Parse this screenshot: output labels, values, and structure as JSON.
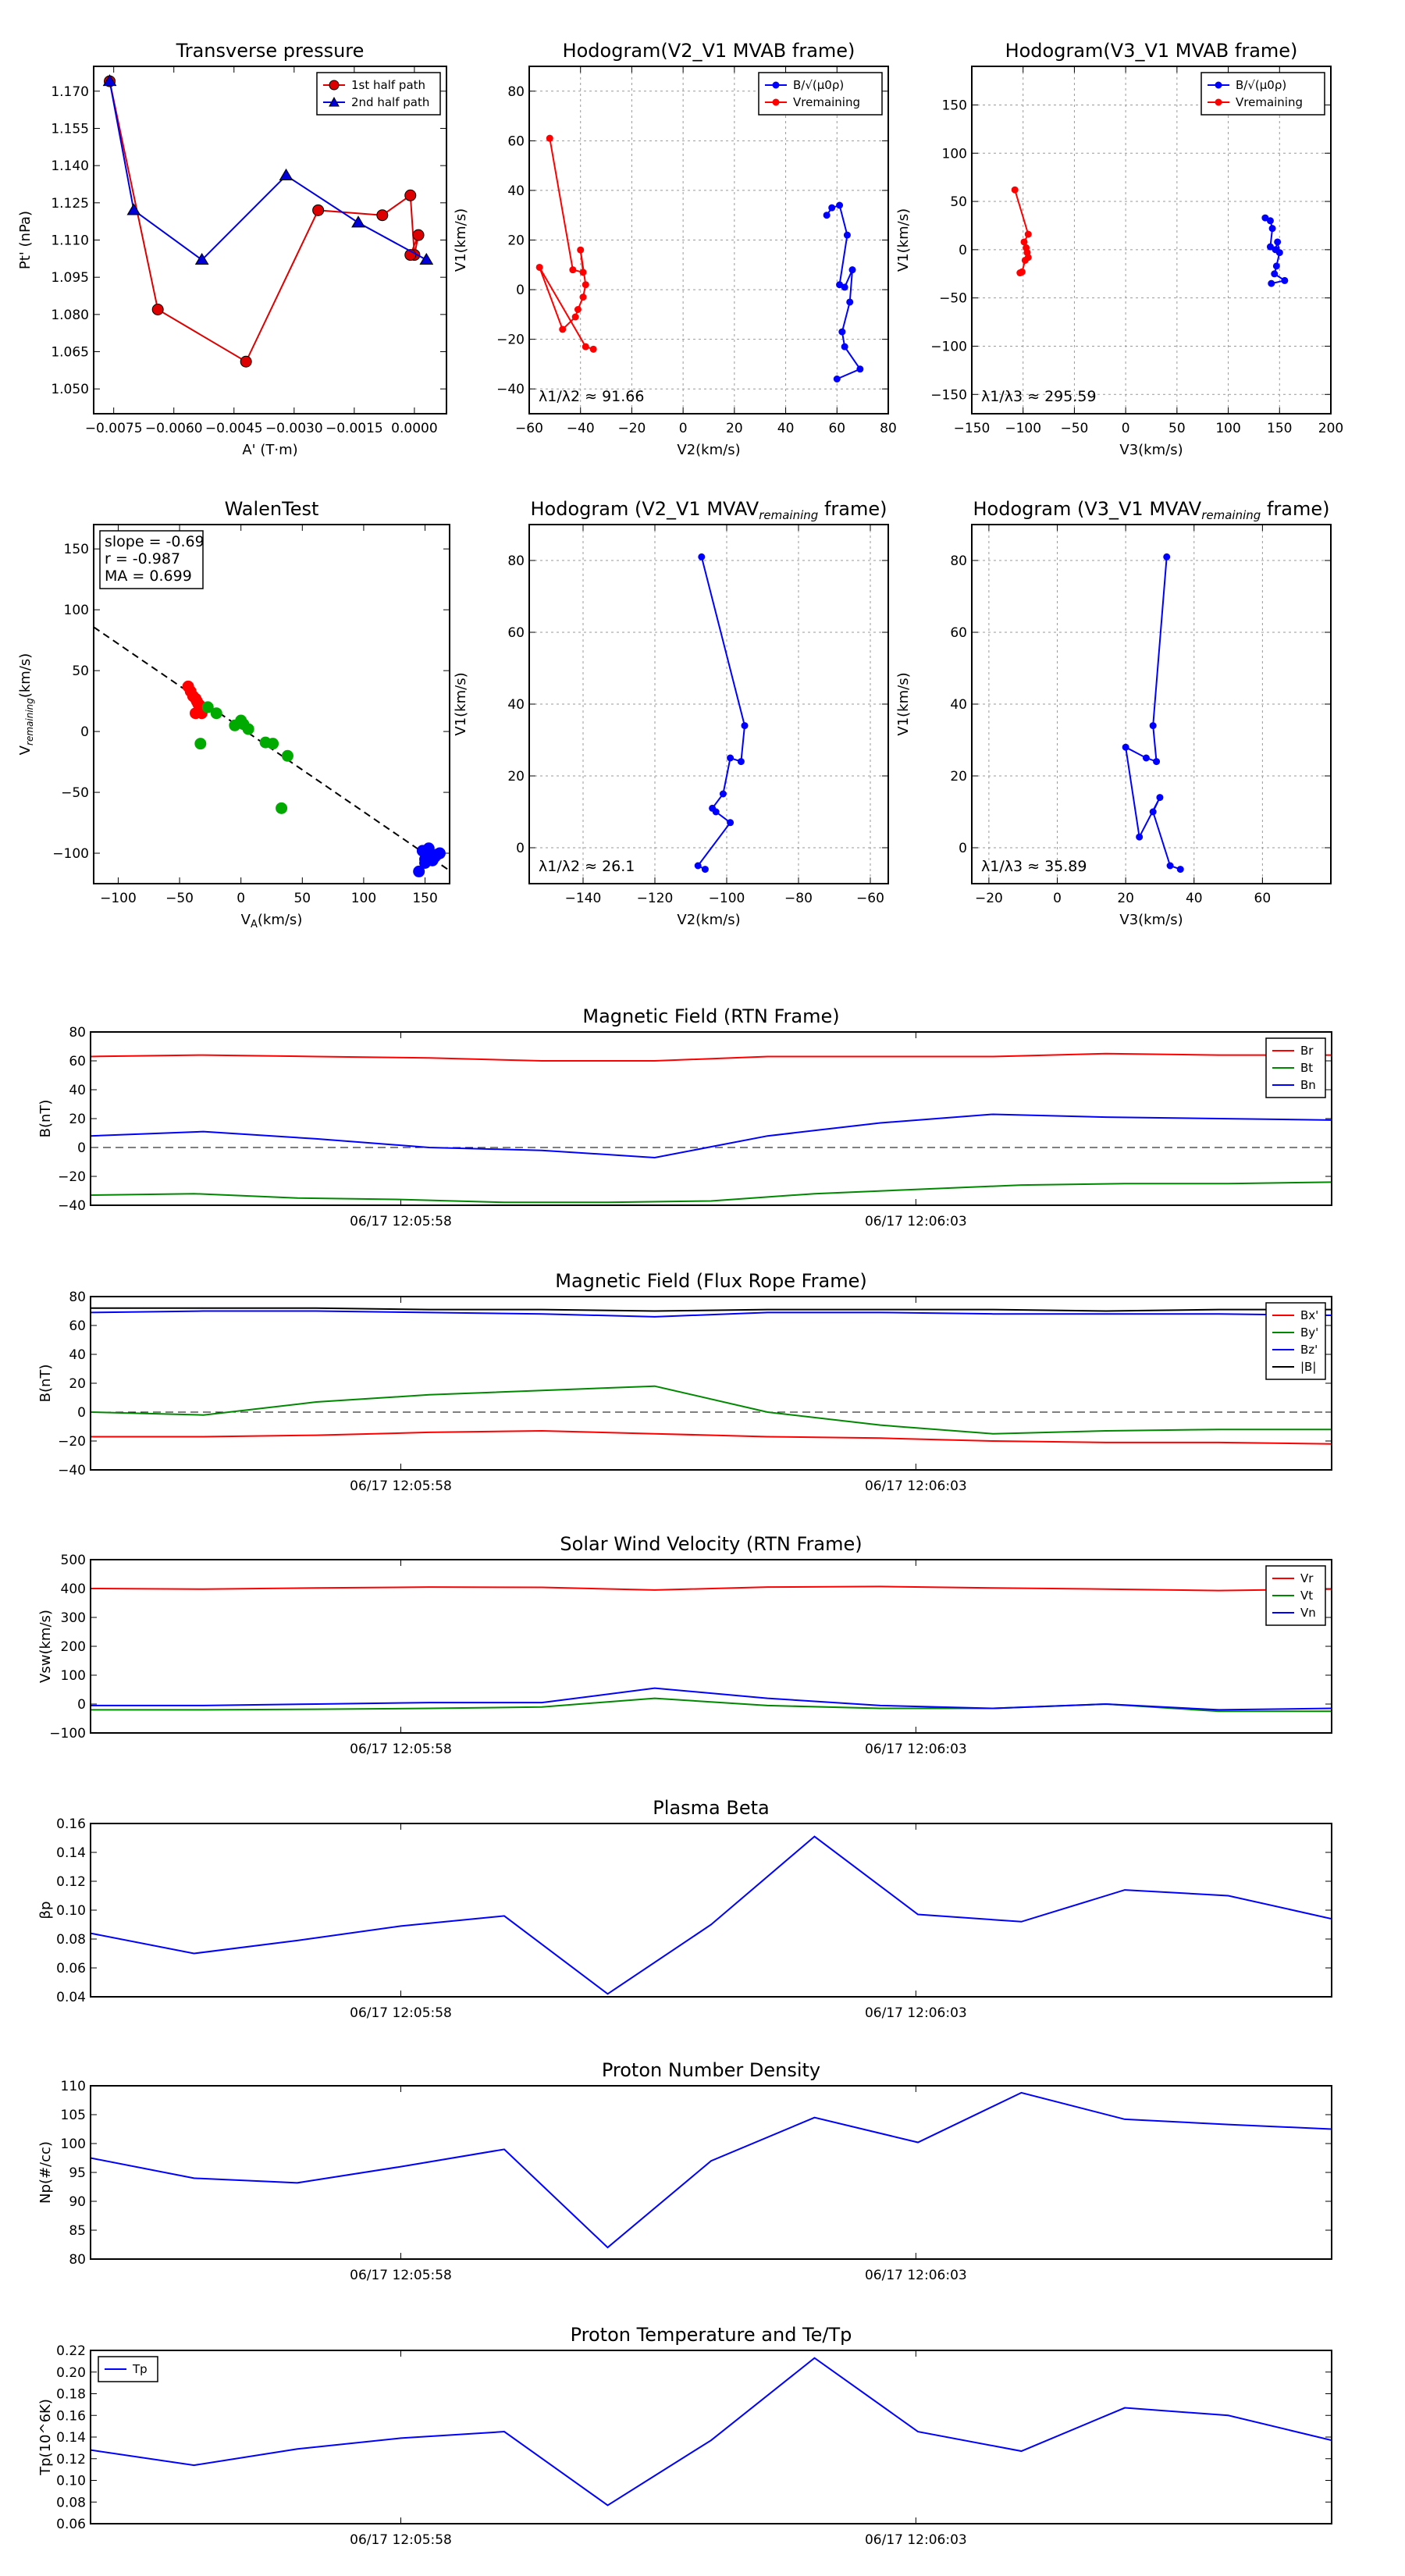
{
  "chart_data": [
    {
      "id": "p1",
      "type": "line",
      "title": "Transverse pressure",
      "xlabel": "A' (T·m)",
      "ylabel": "Pt' (nPa)",
      "xlim": [
        -0.008,
        0.0008
      ],
      "ylim": [
        1.04,
        1.18
      ],
      "xticks": [
        -0.0075,
        -0.006,
        -0.0045,
        -0.003,
        -0.0015,
        0.0
      ],
      "xtick_labels": [
        "−0.0075",
        "−0.0060",
        "−0.0045",
        "−0.0030",
        "−0.0015",
        "0.0000"
      ],
      "yticks": [
        1.05,
        1.065,
        1.08,
        1.095,
        1.11,
        1.125,
        1.14,
        1.155,
        1.17
      ],
      "ytick_labels": [
        "1.050",
        "1.065",
        "1.080",
        "1.095",
        "1.110",
        "1.125",
        "1.140",
        "1.155",
        "1.170"
      ],
      "legend": "upper right",
      "series": [
        {
          "name": "1st half path",
          "color": "#dd0000",
          "marker": "circle",
          "x": [
            -0.0076,
            -0.0064,
            -0.0042,
            -0.0024,
            -0.0008,
            -0.0001,
            0.0,
            0.0001,
            -0.0001
          ],
          "y": [
            1.174,
            1.082,
            1.061,
            1.122,
            1.12,
            1.128,
            1.104,
            1.112,
            1.104
          ]
        },
        {
          "name": "2nd half path",
          "color": "#0000dd",
          "marker": "triangle",
          "x": [
            -0.0076,
            -0.007,
            -0.0053,
            -0.0032,
            -0.0014,
            0.0003
          ],
          "y": [
            1.174,
            1.122,
            1.102,
            1.136,
            1.117,
            1.102
          ]
        }
      ]
    },
    {
      "id": "p2",
      "type": "line",
      "title": "Hodogram(V2_V1 MVAB frame)",
      "xlabel": "V2(km/s)",
      "ylabel": "V1(km/s)",
      "xlim": [
        -60,
        80
      ],
      "ylim": [
        -50,
        90
      ],
      "xticks": [
        -60,
        -40,
        -20,
        0,
        20,
        40,
        60,
        80
      ],
      "yticks": [
        -40,
        -20,
        0,
        20,
        40,
        60,
        80
      ],
      "annotation": "λ1/λ2 ≈ 91.66",
      "grid": true,
      "legend": "upper right",
      "series": [
        {
          "name": "B/√(μ0ρ)",
          "color": "#0000ff",
          "x": [
            56,
            58,
            61,
            64,
            61,
            63,
            66,
            65,
            62,
            63,
            69,
            60
          ],
          "y": [
            30,
            33,
            34,
            22,
            2,
            1,
            8,
            -5,
            -17,
            -23,
            -32,
            -36
          ]
        },
        {
          "name": "Vremaining",
          "color": "#ff0000",
          "x": [
            -52,
            -43,
            -39,
            -40,
            -38,
            -39,
            -41,
            -42,
            -47,
            -56,
            -38,
            -35
          ],
          "y": [
            61,
            8,
            7,
            16,
            2,
            -3,
            -8,
            -11,
            -16,
            9,
            -23,
            -24
          ]
        }
      ]
    },
    {
      "id": "p3",
      "type": "line",
      "title": "Hodogram(V3_V1 MVAB frame)",
      "xlabel": "V3(km/s)",
      "ylabel": "V1(km/s)",
      "xlim": [
        -150,
        200
      ],
      "ylim": [
        -170,
        190
      ],
      "xticks": [
        -150,
        -100,
        -50,
        0,
        50,
        100,
        150,
        200
      ],
      "yticks": [
        -150,
        -100,
        -50,
        0,
        50,
        100,
        150
      ],
      "annotation": "λ1/λ3 ≈ 295.59",
      "grid": true,
      "legend": "upper right",
      "series": [
        {
          "name": "B/√(μ0ρ)",
          "color": "#0000ff",
          "x": [
            136,
            141,
            143,
            141,
            146,
            148,
            150,
            147,
            145,
            155,
            142
          ],
          "y": [
            33,
            30,
            22,
            3,
            0,
            8,
            -3,
            -17,
            -25,
            -32,
            -35
          ]
        },
        {
          "name": "Vremaining",
          "color": "#ff0000",
          "x": [
            -108,
            -95,
            -99,
            -97,
            -96,
            -95,
            -98,
            -101,
            -103
          ],
          "y": [
            62,
            16,
            8,
            2,
            -3,
            -8,
            -11,
            -23,
            -24
          ]
        }
      ]
    },
    {
      "id": "p4",
      "type": "scatter",
      "title": "WalenTest",
      "xlabel": "VA(km/s)",
      "ylabel": "Vremaining(km/s)",
      "xlim": [
        -120,
        170
      ],
      "ylim": [
        -125,
        170
      ],
      "xticks": [
        -100,
        -50,
        0,
        50,
        100,
        150
      ],
      "yticks": [
        -100,
        -50,
        0,
        50,
        100,
        150
      ],
      "fit_line": {
        "slope": -0.69,
        "intercept": 3
      },
      "stats": [
        "slope = -0.69",
        "r = -0.987",
        "MA = 0.699"
      ],
      "series": [
        {
          "name": "red",
          "color": "#ff0000",
          "x": [
            -43,
            -41,
            -39,
            -37,
            -36,
            -35,
            -34,
            -33,
            -37,
            -32
          ],
          "y": [
            37,
            33,
            29,
            27,
            25,
            23,
            22,
            19,
            15,
            15
          ]
        },
        {
          "name": "green",
          "color": "#00aa00",
          "x": [
            -27,
            -20,
            -5,
            0,
            2,
            6,
            20,
            26,
            38,
            33,
            -33
          ],
          "y": [
            20,
            15,
            5,
            9,
            6,
            2,
            -9,
            -10,
            -20,
            -63,
            -10
          ]
        },
        {
          "name": "blue",
          "color": "#0000ff",
          "x": [
            145,
            150,
            152,
            155,
            157,
            160,
            148,
            153,
            158,
            162,
            150,
            156
          ],
          "y": [
            -115,
            -108,
            -100,
            -102,
            -104,
            -101,
            -98,
            -96,
            -103,
            -100,
            -105,
            -106
          ]
        }
      ]
    },
    {
      "id": "p5",
      "type": "line",
      "title": "Hodogram (V2_V1 MVAV",
      "title_sub": "remaining",
      "title_end": " frame)",
      "xlabel": "V2(km/s)",
      "ylabel": "V1(km/s)",
      "xlim": [
        -155,
        -55
      ],
      "ylim": [
        -10,
        90
      ],
      "xticks": [
        -140,
        -120,
        -100,
        -80,
        -60
      ],
      "yticks": [
        0,
        20,
        40,
        60,
        80
      ],
      "annotation": "λ1/λ2 ≈ 26.1",
      "grid": true,
      "series": [
        {
          "name": "hodo",
          "color": "#0000ff",
          "x": [
            -107,
            -95,
            -96,
            -99,
            -101,
            -104,
            -103,
            -99,
            -108,
            -106
          ],
          "y": [
            81,
            34,
            24,
            25,
            15,
            11,
            10,
            7,
            -5,
            -6
          ]
        }
      ]
    },
    {
      "id": "p6",
      "type": "line",
      "title": "Hodogram (V3_V1 MVAV",
      "title_sub": "remaining",
      "title_end": " frame)",
      "xlabel": "V3(km/s)",
      "ylabel": "V1(km/s)",
      "xlim": [
        -25,
        80
      ],
      "ylim": [
        -10,
        90
      ],
      "xticks": [
        -20,
        0,
        20,
        40,
        60
      ],
      "yticks": [
        0,
        20,
        40,
        60,
        80
      ],
      "annotation": "λ1/λ3 ≈ 35.89",
      "grid": true,
      "series": [
        {
          "name": "hodo",
          "color": "#0000ff",
          "x": [
            32,
            28,
            29,
            26,
            20,
            24,
            30,
            28,
            33,
            36
          ],
          "y": [
            81,
            34,
            24,
            25,
            28,
            3,
            14,
            10,
            -5,
            -6
          ]
        }
      ]
    },
    {
      "id": "t1",
      "type": "line",
      "timeseries": true,
      "title": "Magnetic Field (RTN Frame)",
      "ylabel": "B(nT)",
      "ylim": [
        -40,
        80
      ],
      "yticks": [
        -40,
        -20,
        0,
        20,
        40,
        60,
        80
      ],
      "zero_line": true,
      "legend": "upper right",
      "x_ticks": [
        "06/17 12:05:58",
        "06/17 12:06:03"
      ],
      "series": [
        {
          "name": "Br",
          "color": "#ff0000",
          "values": [
            63,
            64,
            63,
            62,
            60,
            60,
            63,
            63,
            63,
            65,
            64,
            64
          ]
        },
        {
          "name": "Bt",
          "color": "#008800",
          "values": [
            -33,
            -32,
            -35,
            -36,
            -38,
            -38,
            -37,
            -32,
            -29,
            -26,
            -25,
            -25,
            -24
          ]
        },
        {
          "name": "Bn",
          "color": "#0000ff",
          "values": [
            8,
            11,
            6,
            0,
            -2,
            -7,
            8,
            17,
            23,
            21,
            20,
            19
          ]
        }
      ]
    },
    {
      "id": "t2",
      "type": "line",
      "timeseries": true,
      "title": "Magnetic Field (Flux Rope Frame)",
      "ylabel": "B(nT)",
      "ylim": [
        -40,
        80
      ],
      "yticks": [
        -40,
        -20,
        0,
        20,
        40,
        60,
        80
      ],
      "zero_line": true,
      "legend": "upper right",
      "x_ticks": [
        "06/17 12:05:58",
        "06/17 12:06:03"
      ],
      "series": [
        {
          "name": "Bx'",
          "color": "#ff0000",
          "values": [
            -17,
            -17,
            -16,
            -14,
            -13,
            -15,
            -17,
            -18,
            -20,
            -21,
            -21,
            -22
          ]
        },
        {
          "name": "By'",
          "color": "#008800",
          "values": [
            0,
            -2,
            7,
            12,
            15,
            18,
            0,
            -9,
            -15,
            -13,
            -12,
            -12
          ]
        },
        {
          "name": "Bz'",
          "color": "#0000ff",
          "values": [
            69,
            70,
            70,
            69,
            68,
            66,
            69,
            69,
            68,
            68,
            68,
            67
          ]
        },
        {
          "name": "|B|",
          "color": "#000000",
          "values": [
            72,
            72,
            72,
            71,
            71,
            70,
            71,
            71,
            71,
            70,
            71,
            71
          ]
        }
      ]
    },
    {
      "id": "t3",
      "type": "line",
      "timeseries": true,
      "title": "Solar Wind Velocity (RTN Frame)",
      "ylabel": "Vsw(km/s)",
      "ylim": [
        -100,
        500
      ],
      "yticks": [
        -100,
        0,
        100,
        200,
        300,
        400,
        500
      ],
      "legend": "upper right",
      "x_ticks": [
        "06/17 12:05:58",
        "06/17 12:06:03"
      ],
      "series": [
        {
          "name": "Vr",
          "color": "#ff0000",
          "values": [
            400,
            398,
            402,
            405,
            404,
            395,
            405,
            407,
            402,
            398,
            393,
            398
          ]
        },
        {
          "name": "Vt",
          "color": "#008800",
          "values": [
            -20,
            -20,
            -18,
            -15,
            -10,
            20,
            -5,
            -15,
            -15,
            0,
            -25,
            -25
          ]
        },
        {
          "name": "Vn",
          "color": "#0000ff",
          "values": [
            -5,
            -5,
            0,
            5,
            5,
            55,
            20,
            -5,
            -15,
            0,
            -20,
            -15
          ]
        }
      ]
    },
    {
      "id": "t4",
      "type": "line",
      "timeseries": true,
      "title": "Plasma Beta",
      "ylabel": "βp",
      "ylim": [
        0.04,
        0.16
      ],
      "yticks": [
        0.04,
        0.06,
        0.08,
        0.1,
        0.12,
        0.14,
        0.16
      ],
      "ytick_labels": [
        "0.04",
        "0.06",
        "0.08",
        "0.10",
        "0.12",
        "0.14",
        "0.16"
      ],
      "x_ticks": [
        "06/17 12:05:58",
        "06/17 12:06:03"
      ],
      "series": [
        {
          "name": "beta",
          "color": "#0000ff",
          "values": [
            0.084,
            0.07,
            0.079,
            0.089,
            0.096,
            0.042,
            0.09,
            0.151,
            0.097,
            0.092,
            0.114,
            0.11,
            0.094
          ]
        }
      ]
    },
    {
      "id": "t5",
      "type": "line",
      "timeseries": true,
      "title": "Proton Number Density",
      "ylabel": "Np(#/cc)",
      "ylim": [
        80,
        110
      ],
      "yticks": [
        80,
        85,
        90,
        95,
        100,
        105,
        110
      ],
      "x_ticks": [
        "06/17 12:05:58",
        "06/17 12:06:03"
      ],
      "series": [
        {
          "name": "Np",
          "color": "#0000ff",
          "values": [
            97.5,
            94,
            93.2,
            96,
            99,
            82,
            97,
            104.5,
            100.2,
            108.8,
            104.2,
            103.3,
            102.5
          ]
        }
      ]
    },
    {
      "id": "t6",
      "type": "line",
      "timeseries": true,
      "title": "Proton Temperature and Te/Tp",
      "ylabel": "Tp(10^6K)",
      "ylim": [
        0.06,
        0.22
      ],
      "yticks": [
        0.06,
        0.08,
        0.1,
        0.12,
        0.14,
        0.16,
        0.18,
        0.2,
        0.22
      ],
      "ytick_labels": [
        "0.06",
        "0.08",
        "0.10",
        "0.12",
        "0.14",
        "0.16",
        "0.18",
        "0.20",
        "0.22"
      ],
      "legend": "upper left",
      "x_ticks": [
        "06/17 12:05:58",
        "06/17 12:06:03"
      ],
      "series": [
        {
          "name": "Tp",
          "color": "#0000ff",
          "values": [
            0.128,
            0.114,
            0.129,
            0.139,
            0.145,
            0.077,
            0.137,
            0.213,
            0.145,
            0.127,
            0.167,
            0.16,
            0.137
          ]
        }
      ]
    }
  ]
}
